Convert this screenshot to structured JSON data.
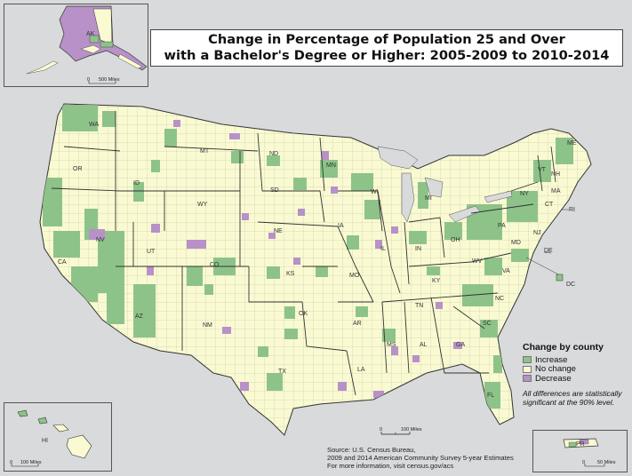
{
  "title": {
    "line1": "Change in Percentage of Population 25 and Over",
    "line2": "with a Bachelor's Degree or Higher: 2005-2009 to 2010-2014"
  },
  "legend": {
    "title": "Change by county",
    "items": [
      {
        "label": "Increase",
        "color": "#8dc389"
      },
      {
        "label": "No change",
        "color": "#fafad2"
      },
      {
        "label": "Decrease",
        "color": "#b791c7"
      }
    ],
    "note_line1": "All differences are statistically",
    "note_line2": "significant at the 90% level."
  },
  "source": {
    "line1": "Source: U.S. Census Bureau,",
    "line2": "2009 and 2014 American Community Survey 5-year Estimates",
    "line3": "For more information, visit census.gov/acs"
  },
  "scale": {
    "main": "100 Miles",
    "alaska": "500 Miles",
    "hawaii": "100 Miles",
    "puerto_rico": "50 Miles",
    "zero": "0"
  },
  "state_labels": [
    "WA",
    "OR",
    "CA",
    "NV",
    "ID",
    "MT",
    "WY",
    "UT",
    "AZ",
    "NM",
    "CO",
    "ND",
    "SD",
    "NE",
    "KS",
    "OK",
    "TX",
    "MN",
    "IA",
    "MO",
    "AR",
    "LA",
    "WI",
    "IL",
    "MI",
    "IN",
    "OH",
    "KY",
    "TN",
    "MS",
    "AL",
    "GA",
    "FL",
    "SC",
    "NC",
    "VA",
    "WV",
    "PA",
    "NY",
    "VT",
    "NH",
    "ME",
    "MA",
    "CT",
    "RI",
    "NJ",
    "DE",
    "MD",
    "DC",
    "AK",
    "HI",
    "PR"
  ],
  "colors": {
    "land": "#fafad2",
    "increase": "#8dc389",
    "decrease": "#b791c7",
    "water": "#d9dadb",
    "border": "#333333"
  }
}
